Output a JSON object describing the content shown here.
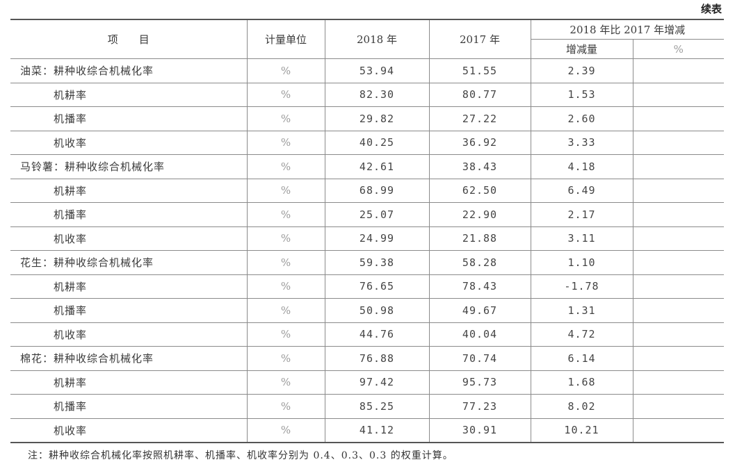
{
  "continued_label": "续表",
  "header": {
    "item": "项　　目",
    "unit": "计量单位",
    "y2018": "2018 年",
    "y2017": "2017 年",
    "change": "2018 年比 2017 年增减",
    "change_amount": "增减量",
    "change_pct": "%"
  },
  "rows": [
    {
      "item": "油菜：耕种收综合机械化率",
      "sub": false,
      "unit": "%",
      "v2018": "53.94",
      "v2017": "51.55",
      "diff": "2.39",
      "pct": ""
    },
    {
      "item": "机耕率",
      "sub": true,
      "unit": "%",
      "v2018": "82.30",
      "v2017": "80.77",
      "diff": "1.53",
      "pct": ""
    },
    {
      "item": "机播率",
      "sub": true,
      "unit": "%",
      "v2018": "29.82",
      "v2017": "27.22",
      "diff": "2.60",
      "pct": ""
    },
    {
      "item": "机收率",
      "sub": true,
      "unit": "%",
      "v2018": "40.25",
      "v2017": "36.92",
      "diff": "3.33",
      "pct": ""
    },
    {
      "item": "马铃薯：耕种收综合机械化率",
      "sub": false,
      "unit": "%",
      "v2018": "42.61",
      "v2017": "38.43",
      "diff": "4.18",
      "pct": ""
    },
    {
      "item": "机耕率",
      "sub": true,
      "unit": "%",
      "v2018": "68.99",
      "v2017": "62.50",
      "diff": "6.49",
      "pct": ""
    },
    {
      "item": "机播率",
      "sub": true,
      "unit": "%",
      "v2018": "25.07",
      "v2017": "22.90",
      "diff": "2.17",
      "pct": ""
    },
    {
      "item": "机收率",
      "sub": true,
      "unit": "%",
      "v2018": "24.99",
      "v2017": "21.88",
      "diff": "3.11",
      "pct": ""
    },
    {
      "item": "花生：耕种收综合机械化率",
      "sub": false,
      "unit": "%",
      "v2018": "59.38",
      "v2017": "58.28",
      "diff": "1.10",
      "pct": ""
    },
    {
      "item": "机耕率",
      "sub": true,
      "unit": "%",
      "v2018": "76.65",
      "v2017": "78.43",
      "diff": "-1.78",
      "pct": ""
    },
    {
      "item": "机播率",
      "sub": true,
      "unit": "%",
      "v2018": "50.98",
      "v2017": "49.67",
      "diff": "1.31",
      "pct": ""
    },
    {
      "item": "机收率",
      "sub": true,
      "unit": "%",
      "v2018": "44.76",
      "v2017": "40.04",
      "diff": "4.72",
      "pct": ""
    },
    {
      "item": "棉花：耕种收综合机械化率",
      "sub": false,
      "unit": "%",
      "v2018": "76.88",
      "v2017": "70.74",
      "diff": "6.14",
      "pct": ""
    },
    {
      "item": "机耕率",
      "sub": true,
      "unit": "%",
      "v2018": "97.42",
      "v2017": "95.73",
      "diff": "1.68",
      "pct": ""
    },
    {
      "item": "机播率",
      "sub": true,
      "unit": "%",
      "v2018": "85.25",
      "v2017": "77.23",
      "diff": "8.02",
      "pct": ""
    },
    {
      "item": "机收率",
      "sub": true,
      "unit": "%",
      "v2018": "41.12",
      "v2017": "30.91",
      "diff": "10.21",
      "pct": ""
    }
  ],
  "note": "注：耕种收综合机械化率按照机耕率、机播率、机收率分别为 0.4、0.3、0.3 的权重计算。"
}
